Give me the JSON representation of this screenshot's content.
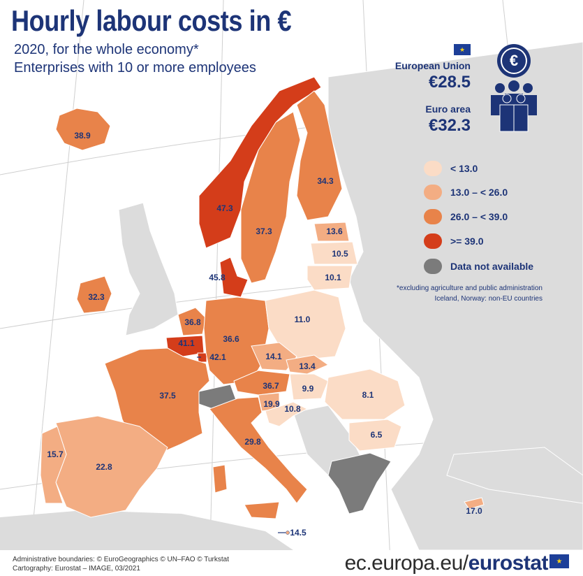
{
  "title": "Hourly labour costs in €",
  "subtitle_line1": "2020, for the whole economy*",
  "subtitle_line2": "Enterprises with 10 or more employees",
  "aggregates": {
    "eu_label": "European Union",
    "eu_value": "€28.5",
    "ea_label": "Euro area",
    "ea_value": "€32.3"
  },
  "euro_symbol": "€",
  "legend": [
    {
      "label": "< 13.0",
      "color": "#fbdcc6"
    },
    {
      "label": "13.0 – < 26.0",
      "color": "#f3ad83"
    },
    {
      "label": "26.0 – < 39.0",
      "color": "#e8834a"
    },
    {
      "label": ">= 39.0",
      "color": "#d43d1a"
    },
    {
      "label": "Data not available",
      "color": "#7b7b7b"
    }
  ],
  "notes": {
    "line1": "*excluding agriculture and public administration",
    "line2": "Iceland, Norway: non-EU countries"
  },
  "values": {
    "iceland": "38.9",
    "norway": "47.3",
    "sweden": "37.3",
    "finland": "34.3",
    "estonia": "13.6",
    "latvia": "10.5",
    "lithuania": "10.1",
    "denmark": "45.8",
    "ireland": "32.3",
    "netherlands": "36.8",
    "belgium": "41.1",
    "luxembourg": "42.1",
    "germany": "36.6",
    "poland": "11.0",
    "czechia": "14.1",
    "slovakia": "13.4",
    "austria": "36.7",
    "hungary": "9.9",
    "slovenia": "19.9",
    "croatia": "10.8",
    "romania": "8.1",
    "bulgaria": "6.5",
    "france": "37.5",
    "italy": "29.8",
    "portugal": "15.7",
    "spain": "22.8",
    "malta": "14.5",
    "cyprus": "17.0"
  },
  "credits": {
    "line1": "Administrative boundaries: © EuroGeographics © UN–FAO © Turkstat",
    "line2": "Cartography: Eurostat – IMAGE, 03/2021"
  },
  "site": {
    "prefix": "ec.europa.eu/",
    "brand": "eurostat"
  },
  "colors": {
    "text": "#1d3477",
    "sea": "#ffffff",
    "land_other": "#dcdcdc",
    "na": "#7b7b7b"
  }
}
